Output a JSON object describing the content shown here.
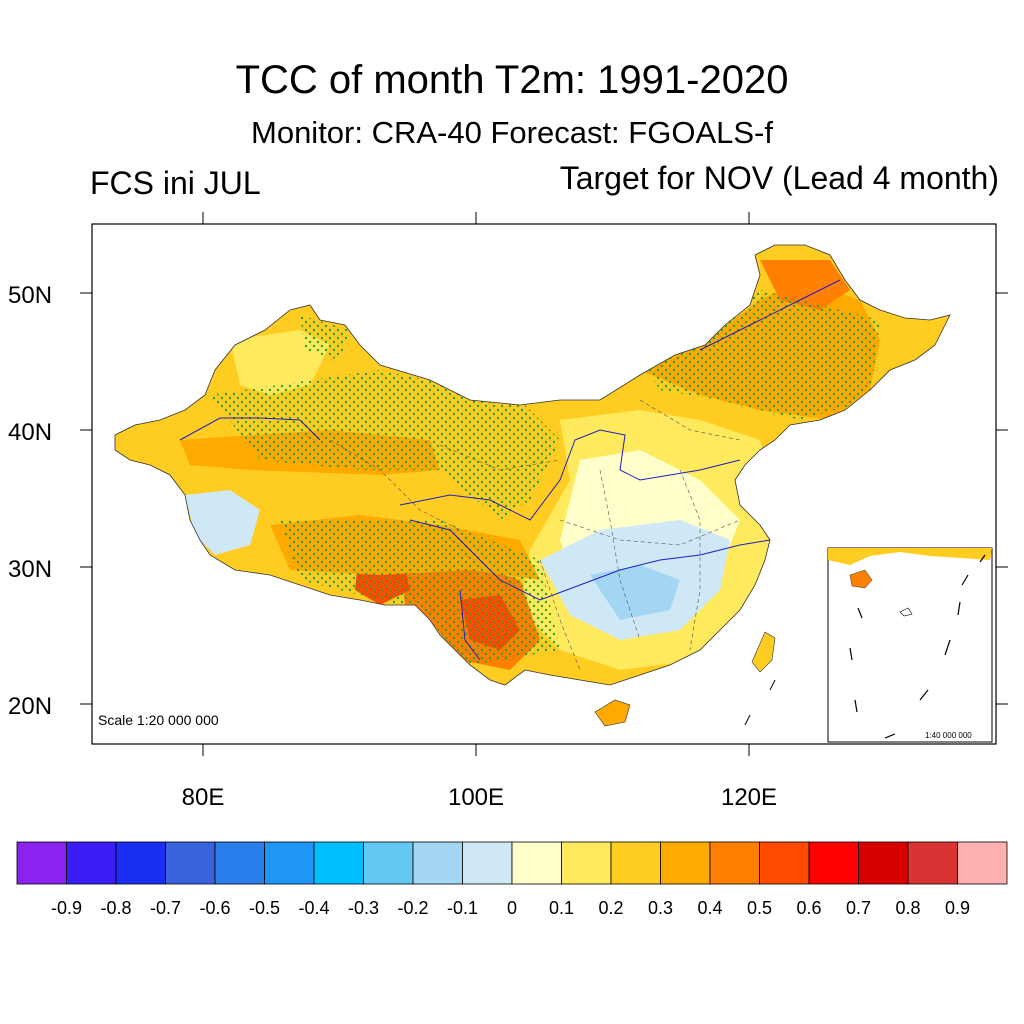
{
  "title": "TCC of month T2m: 1991-2020",
  "subtitle": "Monitor: CRA-40   Forecast: FGOALS-f",
  "left_label": "FCS ini JUL",
  "right_label": "Target for NOV (Lead 4 month)",
  "map": {
    "lat_labels": [
      "50N",
      "40N",
      "30N",
      "20N"
    ],
    "lon_labels": [
      "80E",
      "100E",
      "120E"
    ],
    "scale_main": "Scale 1:20 000 000",
    "scale_inset": "1:40 000 000",
    "stipple_color": "#2ca02c",
    "river_color": "#1f1fbf"
  },
  "colorbar": {
    "colors": [
      "#8b22f0",
      "#3a1cf5",
      "#1a2df2",
      "#3a63de",
      "#2a7eeb",
      "#1e96f5",
      "#00bfff",
      "#63c8f2",
      "#a3d6f2",
      "#cfe8f5",
      "#ffffcc",
      "#ffe95c",
      "#ffcc22",
      "#ffaa00",
      "#ff8000",
      "#ff4a00",
      "#ff0000",
      "#d90000",
      "#d93333",
      "#ffb0b0"
    ],
    "labels": [
      "-0.9",
      "-0.8",
      "-0.7",
      "-0.6",
      "-0.5",
      "-0.4",
      "-0.3",
      "-0.2",
      "-0.1",
      "0",
      "0.1",
      "0.2",
      "0.3",
      "0.4",
      "0.5",
      "0.6",
      "0.7",
      "0.8",
      "0.9"
    ]
  }
}
